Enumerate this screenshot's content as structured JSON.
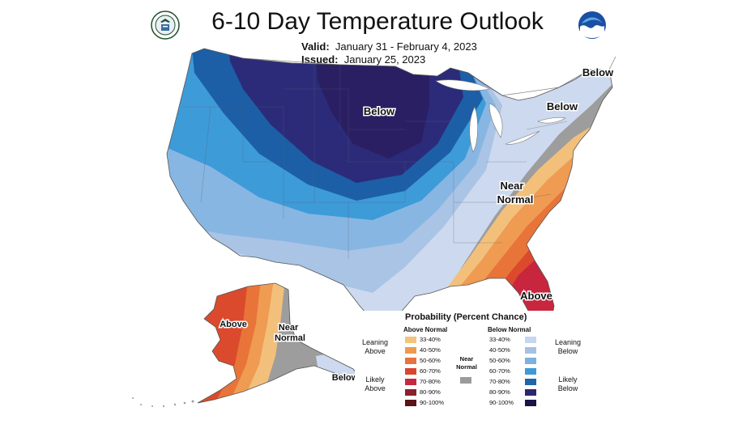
{
  "title": "6-10 Day Temperature Outlook",
  "valid_label": "Valid:",
  "valid_value": "January 31 - February 4, 2023",
  "issued_label": "Issued:",
  "issued_value": "January 25, 2023",
  "map_labels": {
    "below_north": "Below",
    "below_ne": "Below",
    "below_maine": "Below",
    "near_normal_1": "Near",
    "near_normal_2": "Normal",
    "above_se": "Above",
    "above_ak": "Above",
    "near_ak_1": "Near",
    "near_ak_2": "Normal",
    "below_ak": "Below"
  },
  "legend": {
    "title": "Probability (Percent Chance)",
    "above_header": "Above Normal",
    "below_header": "Below Normal",
    "leaning_above_1": "Leaning",
    "leaning_above_2": "Above",
    "likely_above_1": "Likely",
    "likely_above_2": "Above",
    "near_1": "Near",
    "near_2": "Normal",
    "leaning_below_1": "Leaning",
    "leaning_below_2": "Below",
    "likely_below_1": "Likely",
    "likely_below_2": "Below",
    "above": [
      {
        "label": "33-40%",
        "color": "#f5c47a"
      },
      {
        "label": "40-50%",
        "color": "#ee9a4e"
      },
      {
        "label": "50-60%",
        "color": "#e8733c"
      },
      {
        "label": "60-70%",
        "color": "#d9452d"
      },
      {
        "label": "70-80%",
        "color": "#c8283f"
      },
      {
        "label": "80-90%",
        "color": "#8c1f2a"
      },
      {
        "label": "90-100%",
        "color": "#5a1316"
      }
    ],
    "below": [
      {
        "label": "33-40%",
        "color": "#c6d6ee"
      },
      {
        "label": "40-50%",
        "color": "#a4c2e6"
      },
      {
        "label": "50-60%",
        "color": "#7fb0e0"
      },
      {
        "label": "60-70%",
        "color": "#3c9ad9"
      },
      {
        "label": "70-80%",
        "color": "#1b66ad"
      },
      {
        "label": "80-90%",
        "color": "#2c2770"
      },
      {
        "label": "90-100%",
        "color": "#1a1345"
      }
    ],
    "near_color": "#9b9b9b"
  },
  "colors": {
    "below_90": "#2a1f63",
    "below_80": "#2c2b7a",
    "below_70": "#1c5fa6",
    "below_60": "#3d9bd8",
    "below_50": "#88b6e2",
    "below_40": "#a9c4e5",
    "below_33": "#cdd9ee",
    "near": "#9d9d9d",
    "above_33": "#f3c07c",
    "above_40": "#ef9b52",
    "above_50": "#e8743a",
    "above_60": "#db4a2c",
    "above_70": "#c8253f"
  }
}
